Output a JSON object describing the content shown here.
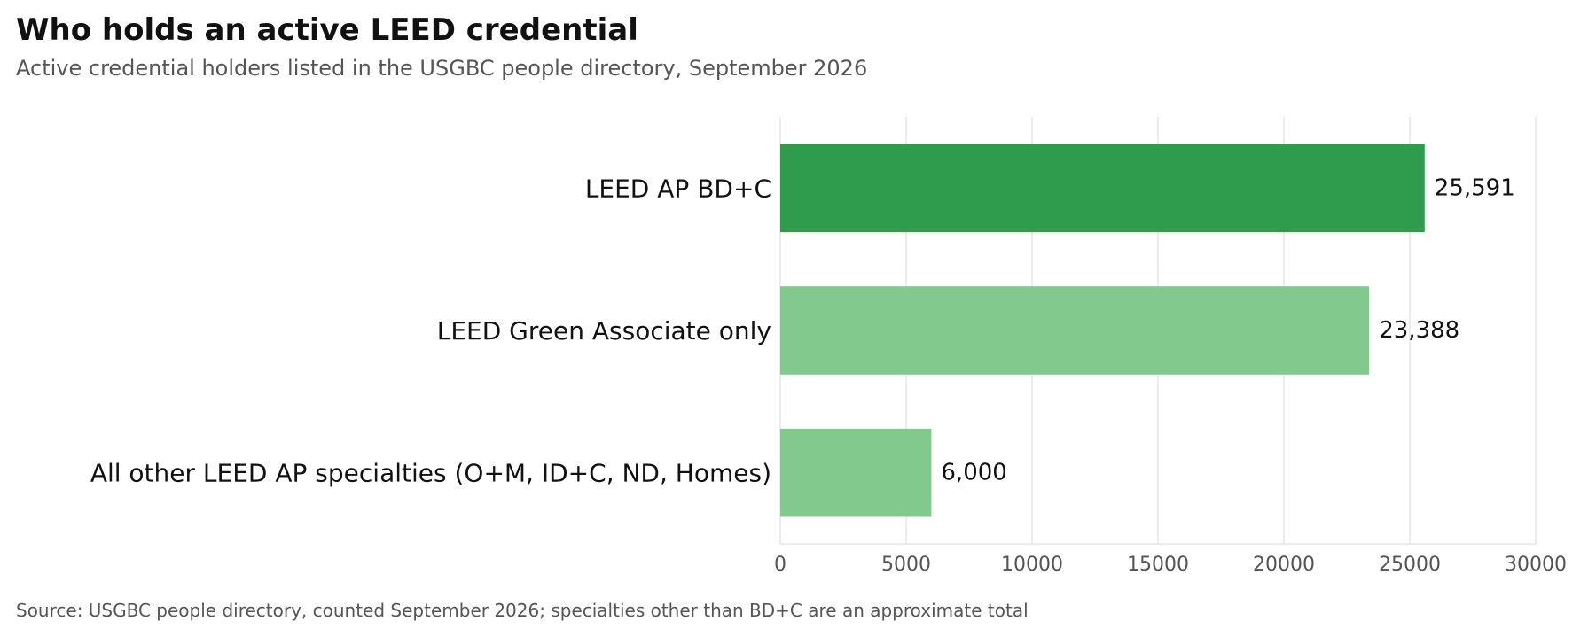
{
  "title": "Who holds an active LEED credential",
  "subtitle": "Active credential holders listed in the USGBC people directory, September 2026",
  "source": "Source: USGBC people directory, counted September 2026; specialties other than BD+C are an approximate total",
  "colors": {
    "highlight": "#2e9b4d",
    "default": "#81c98d",
    "grid": "#e5e5e5",
    "axis_text": "#555555",
    "label_text": "#111111"
  },
  "chart_data": {
    "type": "bar",
    "orientation": "horizontal",
    "categories": [
      "LEED AP BD+C",
      "LEED Green Associate only",
      "All other LEED AP specialties (O+M, ID+C, ND, Homes)"
    ],
    "values": [
      25591,
      23388,
      6000
    ],
    "value_labels": [
      "25,591",
      "23,388",
      "6,000"
    ],
    "highlighted": [
      true,
      false,
      false
    ],
    "xlim": [
      0,
      30000
    ],
    "xticks": [
      0,
      5000,
      10000,
      15000,
      20000,
      25000,
      30000
    ],
    "xtick_labels": [
      "0",
      "5000",
      "10000",
      "15000",
      "20000",
      "25000",
      "30000"
    ],
    "grid": "vertical",
    "legend": "none"
  }
}
